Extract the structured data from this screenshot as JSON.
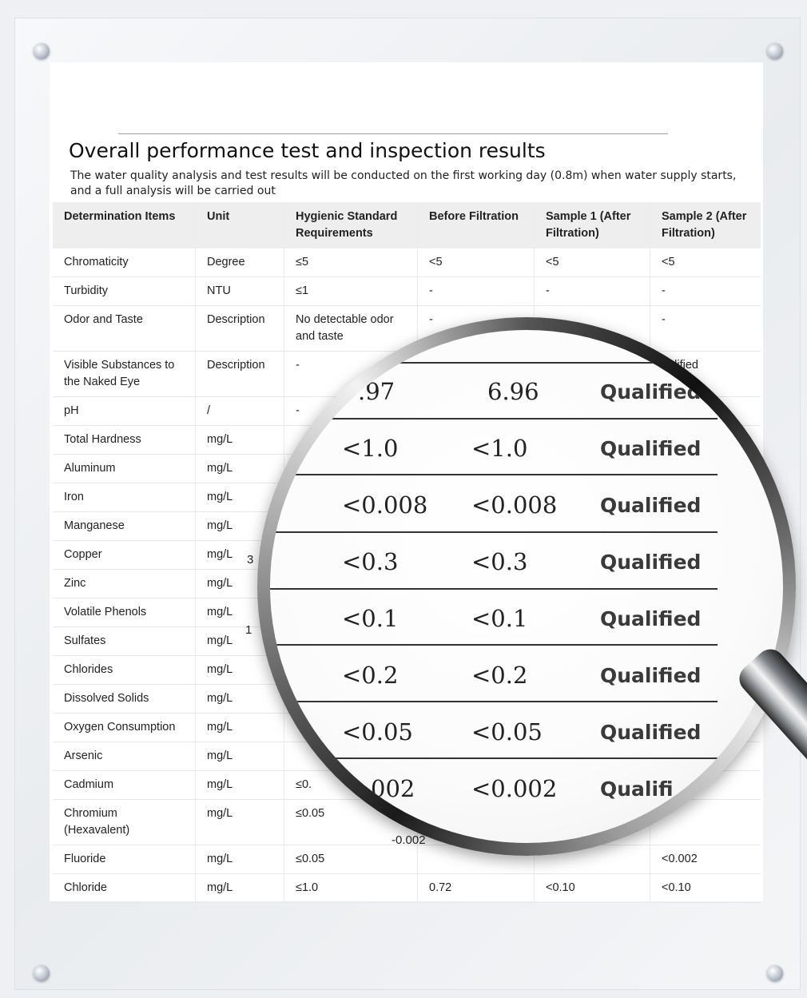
{
  "title": "Overall performance test and inspection results",
  "subtitle": "The water quality analysis and test results will be conducted on the first working day (0.8m) when water supply starts, and a full analysis will be carried out",
  "table": {
    "headers": [
      "Determination Items",
      "Unit",
      "Hygienic Standard Requirements",
      "Before Filtration",
      "Sample 1 (After Filtration)",
      "Sample 2 (After Filtration)"
    ],
    "rows": [
      {
        "item": "Chromaticity",
        "unit": "Degree",
        "std": "≤5",
        "before": "<5",
        "s1": "<5",
        "s2": "<5"
      },
      {
        "item": "Turbidity",
        "unit": "NTU",
        "std": "≤1",
        "before": "-",
        "s1": "-",
        "s2": "-"
      },
      {
        "item": "Odor and Taste",
        "unit": "Description",
        "std": "No detectable odor and taste",
        "before": "-",
        "s1": "",
        "s2": "-"
      },
      {
        "item": "Visible Substances to the Naked Eye",
        "unit": "Description",
        "std": "-",
        "before": "",
        "s1": "",
        "s2": "ualified"
      },
      {
        "item": "pH",
        "unit": "/",
        "std": "-",
        "before": "",
        "s1": "",
        "s2": ""
      },
      {
        "item": "Total Hardness",
        "unit": "mg/L",
        "std": "",
        "before": "",
        "s1": "",
        "s2": ""
      },
      {
        "item": "Aluminum",
        "unit": "mg/L",
        "std": "",
        "before": "",
        "s1": "",
        "s2": ""
      },
      {
        "item": "Iron",
        "unit": "mg/L",
        "std": "",
        "before": "",
        "s1": "",
        "s2": ""
      },
      {
        "item": "Manganese",
        "unit": "mg/L",
        "std": "",
        "before": "",
        "s1": "",
        "s2": ""
      },
      {
        "item": "Copper",
        "unit": "mg/L",
        "std": "",
        "before": "",
        "s1": "",
        "s2": ""
      },
      {
        "item": "Zinc",
        "unit": "mg/L",
        "std": "",
        "before": "",
        "s1": "",
        "s2": ""
      },
      {
        "item": "Volatile Phenols",
        "unit": "mg/L",
        "std": "",
        "before": "",
        "s1": "",
        "s2": ""
      },
      {
        "item": "Sulfates",
        "unit": "mg/L",
        "std": "",
        "before": "",
        "s1": "",
        "s2": ""
      },
      {
        "item": "Chlorides",
        "unit": "mg/L",
        "std": "",
        "before": "",
        "s1": "",
        "s2": ""
      },
      {
        "item": "Dissolved Solids",
        "unit": "mg/L",
        "std": "",
        "before": "",
        "s1": "",
        "s2": ""
      },
      {
        "item": "Oxygen Consumption",
        "unit": "mg/L",
        "std": "",
        "before": "",
        "s1": "",
        "s2": ""
      },
      {
        "item": "Arsenic",
        "unit": "mg/L",
        "std": "",
        "before": "",
        "s1": "",
        "s2": ""
      },
      {
        "item": "Cadmium",
        "unit": "mg/L",
        "std": "≤0.",
        "before": "",
        "s1": "",
        "s2": ""
      },
      {
        "item": "Chromium (Hexavalent)",
        "unit": "mg/L",
        "std": "≤0.05",
        "before": "",
        "s1": "",
        "s2": ""
      },
      {
        "item": "Fluoride",
        "unit": "mg/L",
        "std": "≤0.05",
        "before": "",
        "s1": "",
        "s2": "<0.002"
      },
      {
        "item": "Chloride",
        "unit": "mg/L",
        "std": "≤1.0",
        "before": "0.72",
        "s1": "<0.10",
        "s2": "<0.10"
      }
    ]
  },
  "stray": {
    "copper_digit": "3",
    "sulfate_digit": "1",
    "below_glass": "-0.002"
  },
  "magnifier": {
    "rows": [
      {
        "a": ".97",
        "b": "6.96",
        "q": "Qualified"
      },
      {
        "a": "<1.0",
        "b": "<1.0",
        "q": "Qualified"
      },
      {
        "a": "<0.008",
        "b": "<0.008",
        "q": "Qualified"
      },
      {
        "a": "<0.3",
        "b": "<0.3",
        "q": "Qualified"
      },
      {
        "a": "<0.1",
        "b": "<0.1",
        "q": "Qualified"
      },
      {
        "a": "<0.2",
        "b": "<0.2",
        "q": "Qualified"
      },
      {
        "a": "<0.05",
        "b": "<0.05",
        "q": "Qualified"
      },
      {
        "a": "002",
        "b": "<0.002",
        "q": "Qualifi"
      }
    ]
  }
}
